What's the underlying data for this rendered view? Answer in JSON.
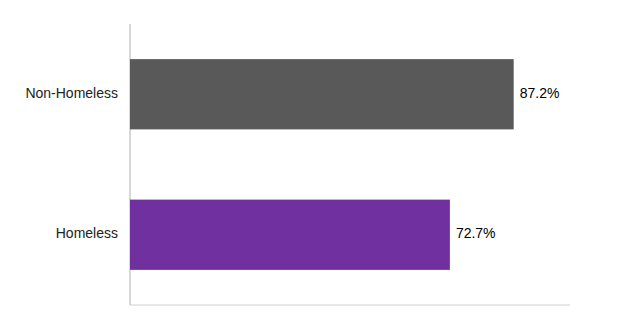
{
  "chart_data": {
    "type": "bar",
    "orientation": "horizontal",
    "categories": [
      "Homeless",
      "Non-Homeless"
    ],
    "values": [
      72.7,
      87.2
    ],
    "value_labels": [
      "72.7%",
      "87.2%"
    ],
    "colors": [
      "#7030A0",
      "#595959"
    ],
    "xlim": [
      0,
      100
    ],
    "data_labels": true,
    "tick_labels": "y"
  }
}
